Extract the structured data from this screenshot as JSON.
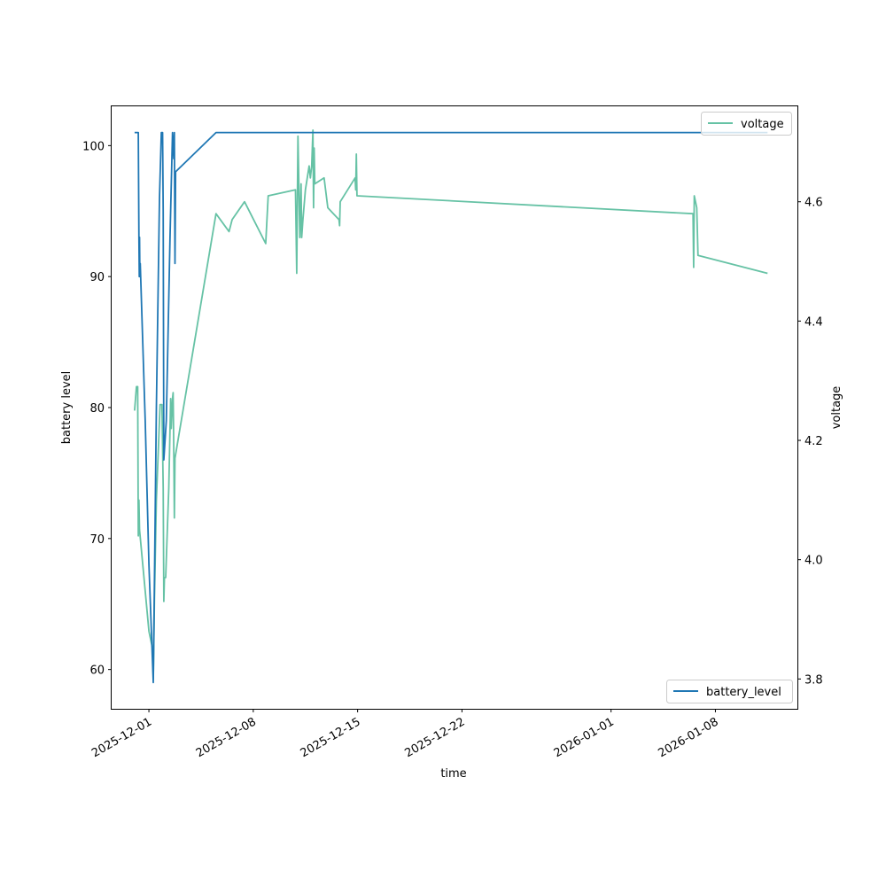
{
  "chart_data": {
    "type": "line",
    "x_axis": {
      "label": "time",
      "tick_labels": [
        "2025-12-01",
        "2025-12-08",
        "2025-12-15",
        "2025-12-22",
        "2026-01-01",
        "2026-01-08"
      ],
      "tick_dates": [
        "2025-12-01",
        "2025-12-08",
        "2025-12-15",
        "2025-12-22",
        "2026-01-01",
        "2026-01-08"
      ],
      "range": [
        "2025-11-28T12:00",
        "2026-01-13T12:00"
      ]
    },
    "y_axis_left": {
      "label": "battery level",
      "ticks": [
        60,
        70,
        80,
        90,
        100
      ],
      "range": [
        57,
        103
      ]
    },
    "y_axis_right": {
      "label": "voltage",
      "ticks": [
        3.8,
        4.0,
        4.2,
        4.4,
        4.6
      ],
      "tick_labels": [
        "3.8",
        "4.0",
        "4.2",
        "4.4",
        "4.6"
      ],
      "range": [
        3.75,
        4.76
      ]
    },
    "grid": false,
    "series": [
      {
        "name": "battery_level",
        "axis": "left",
        "color": "#1f77b4",
        "legend_position": "lower-right",
        "points": [
          [
            "2025-11-30T01:00",
            101
          ],
          [
            "2025-11-30T07:00",
            101
          ],
          [
            "2025-11-30T08:00",
            93
          ],
          [
            "2025-11-30T08:30",
            90
          ],
          [
            "2025-11-30T09:00",
            93
          ],
          [
            "2025-11-30T09:30",
            90
          ],
          [
            "2025-11-30T10:00",
            91
          ],
          [
            "2025-11-30T12:00",
            88
          ],
          [
            "2025-11-30T18:00",
            79
          ],
          [
            "2025-12-01T00:00",
            68
          ],
          [
            "2025-12-01T07:00",
            59
          ],
          [
            "2025-12-01T08:00",
            63
          ],
          [
            "2025-12-01T12:00",
            80
          ],
          [
            "2025-12-01T17:00",
            96
          ],
          [
            "2025-12-01T20:00",
            101
          ],
          [
            "2025-12-01T22:00",
            101
          ],
          [
            "2025-12-01T23:00",
            95
          ],
          [
            "2025-12-02T00:00",
            76
          ],
          [
            "2025-12-02T04:00",
            79
          ],
          [
            "2025-12-02T10:00",
            93
          ],
          [
            "2025-12-02T14:00",
            101
          ],
          [
            "2025-12-02T16:00",
            99
          ],
          [
            "2025-12-02T17:00",
            101
          ],
          [
            "2025-12-02T18:00",
            91
          ],
          [
            "2025-12-02T19:00",
            98
          ],
          [
            "2025-12-05T12:00",
            101
          ],
          [
            "2026-01-11T12:00",
            101
          ]
        ]
      },
      {
        "name": "voltage",
        "axis": "right",
        "color": "#66c2a5",
        "legend_position": "upper-right",
        "points": [
          [
            "2025-11-30T01:00",
            4.25
          ],
          [
            "2025-11-30T04:00",
            4.29
          ],
          [
            "2025-11-30T06:00",
            4.29
          ],
          [
            "2025-11-30T07:00",
            4.04
          ],
          [
            "2025-11-30T08:00",
            4.1
          ],
          [
            "2025-11-30T09:00",
            4.05
          ],
          [
            "2025-12-01T00:00",
            3.88
          ],
          [
            "2025-12-01T06:00",
            3.85
          ],
          [
            "2025-12-01T07:00",
            3.8
          ],
          [
            "2025-12-01T09:00",
            3.94
          ],
          [
            "2025-12-01T12:00",
            4.1
          ],
          [
            "2025-12-01T18:00",
            4.26
          ],
          [
            "2025-12-01T21:00",
            4.26
          ],
          [
            "2025-12-01T23:00",
            4.12
          ],
          [
            "2025-12-02T00:00",
            3.93
          ],
          [
            "2025-12-02T01:00",
            3.97
          ],
          [
            "2025-12-02T03:00",
            3.97
          ],
          [
            "2025-12-02T08:00",
            4.12
          ],
          [
            "2025-12-02T11:00",
            4.27
          ],
          [
            "2025-12-02T12:00",
            4.22
          ],
          [
            "2025-12-02T14:00",
            4.27
          ],
          [
            "2025-12-02T15:00",
            4.28
          ],
          [
            "2025-12-02T16:00",
            4.19
          ],
          [
            "2025-12-02T17:00",
            4.07
          ],
          [
            "2025-12-02T18:00",
            4.17
          ],
          [
            "2025-12-05T12:00",
            4.58
          ],
          [
            "2025-12-06T09:00",
            4.55
          ],
          [
            "2025-12-06T14:00",
            4.57
          ],
          [
            "2025-12-07T10:00",
            4.6
          ],
          [
            "2025-12-08T20:00",
            4.53
          ],
          [
            "2025-12-09T00:00",
            4.61
          ],
          [
            "2025-12-10T20:00",
            4.62
          ],
          [
            "2025-12-10T22:00",
            4.48
          ],
          [
            "2025-12-11T00:00",
            4.71
          ],
          [
            "2025-12-11T03:00",
            4.54
          ],
          [
            "2025-12-11T05:00",
            4.63
          ],
          [
            "2025-12-11T06:00",
            4.54
          ],
          [
            "2025-12-11T08:00",
            4.57
          ],
          [
            "2025-12-11T12:00",
            4.62
          ],
          [
            "2025-12-11T18:00",
            4.66
          ],
          [
            "2025-12-11T20:00",
            4.64
          ],
          [
            "2025-12-11T22:00",
            4.66
          ],
          [
            "2025-12-12T00:00",
            4.72
          ],
          [
            "2025-12-12T01:00",
            4.59
          ],
          [
            "2025-12-12T02:00",
            4.69
          ],
          [
            "2025-12-12T03:00",
            4.63
          ],
          [
            "2025-12-12T18:00",
            4.64
          ],
          [
            "2025-12-13T00:00",
            4.59
          ],
          [
            "2025-12-13T18:00",
            4.57
          ],
          [
            "2025-12-13T19:00",
            4.56
          ],
          [
            "2025-12-13T20:00",
            4.6
          ],
          [
            "2025-12-14T20:00",
            4.64
          ],
          [
            "2025-12-14T21:00",
            4.62
          ],
          [
            "2025-12-14T22:00",
            4.68
          ],
          [
            "2025-12-14T23:00",
            4.61
          ],
          [
            "2026-01-06T12:00",
            4.58
          ],
          [
            "2026-01-06T13:00",
            4.49
          ],
          [
            "2026-01-06T14:00",
            4.61
          ],
          [
            "2026-01-06T16:00",
            4.6
          ],
          [
            "2026-01-06T18:00",
            4.59
          ],
          [
            "2026-01-06T20:00",
            4.51
          ],
          [
            "2026-01-11T12:00",
            4.48
          ]
        ]
      }
    ]
  }
}
